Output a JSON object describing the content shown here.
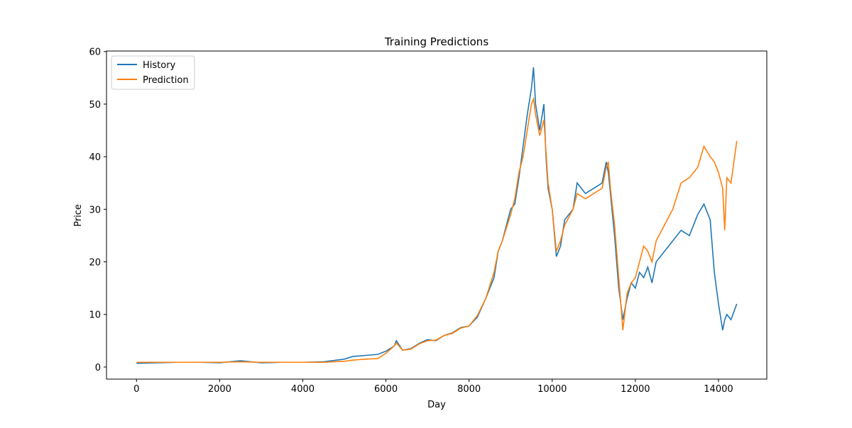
{
  "chart_data": {
    "type": "line",
    "title": "Training Predictions",
    "x_label": "Day",
    "y_label": "Price",
    "x": [
      0,
      500,
      1000,
      1500,
      2000,
      2500,
      3000,
      3500,
      4000,
      4500,
      5000,
      5200,
      5500,
      5800,
      6000,
      6200,
      6250,
      6400,
      6600,
      6800,
      7000,
      7200,
      7400,
      7600,
      7800,
      8000,
      8200,
      8400,
      8600,
      8700,
      8800,
      9000,
      9100,
      9200,
      9300,
      9400,
      9500,
      9550,
      9600,
      9700,
      9800,
      9850,
      9900,
      10000,
      10100,
      10200,
      10300,
      10500,
      10600,
      10800,
      11000,
      11200,
      11300,
      11350,
      11400,
      11500,
      11600,
      11700,
      11800,
      11900,
      12000,
      12100,
      12200,
      12300,
      12400,
      12500,
      12700,
      12900,
      13100,
      13300,
      13500,
      13650,
      13800,
      13900,
      14000,
      14100,
      14150,
      14200,
      14300,
      14440
    ],
    "series": [
      {
        "name": "History",
        "color": "#1f77b4",
        "values": [
          0.7,
          0.8,
          0.9,
          0.9,
          0.8,
          1.2,
          0.8,
          0.9,
          0.9,
          1.0,
          1.5,
          2.0,
          2.2,
          2.4,
          3.0,
          4.0,
          5.0,
          3.2,
          3.5,
          4.5,
          5.2,
          5.0,
          6.0,
          6.5,
          7.5,
          7.8,
          9.5,
          13,
          17,
          22,
          24,
          30,
          31,
          36,
          42,
          48,
          53,
          57,
          50,
          45,
          50,
          40,
          34,
          30,
          21,
          23,
          28,
          30,
          35,
          33,
          34,
          35,
          39,
          37,
          33,
          25,
          15,
          9,
          13,
          16,
          15,
          18,
          17,
          19,
          16,
          20,
          22,
          24,
          26,
          25,
          29,
          31,
          28,
          18,
          12,
          7,
          9,
          10,
          9,
          12
        ]
      },
      {
        "name": "Prediction",
        "color": "#ff7f0e",
        "values": [
          0.9,
          0.9,
          0.9,
          0.9,
          0.9,
          1.0,
          0.9,
          0.9,
          0.9,
          0.9,
          1.1,
          1.3,
          1.5,
          1.6,
          2.6,
          4.0,
          4.6,
          3.2,
          3.4,
          4.4,
          5.0,
          5.1,
          6.0,
          6.4,
          7.4,
          7.8,
          9.8,
          13,
          18,
          22,
          24,
          29,
          32,
          37,
          40,
          45,
          50,
          51,
          48,
          44,
          47,
          41,
          35,
          30,
          22,
          24,
          27,
          30,
          33,
          32,
          33,
          34,
          38,
          39,
          34,
          27,
          17,
          7,
          14,
          16,
          17,
          20,
          23,
          22,
          20,
          24,
          27,
          30,
          35,
          36,
          38,
          42,
          40,
          39,
          37,
          34,
          26,
          36,
          35,
          43
        ]
      }
    ],
    "xlim": [
      -722,
      15162
    ],
    "ylim": [
      -2.3,
      60.1
    ],
    "xticks": [
      0,
      2000,
      4000,
      6000,
      8000,
      10000,
      12000,
      14000
    ],
    "yticks": [
      0,
      10,
      20,
      30,
      40,
      50,
      60
    ],
    "legend": "upper left"
  }
}
